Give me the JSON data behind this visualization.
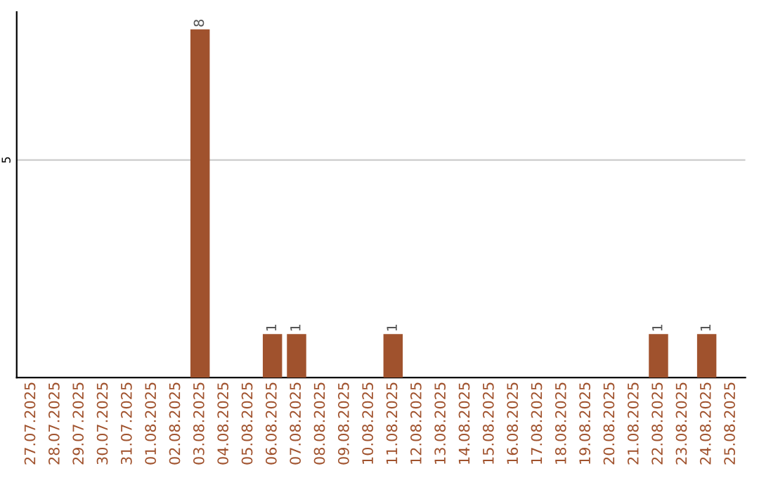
{
  "chart_data": {
    "type": "bar",
    "categories": [
      "27.07.2025",
      "28.07.2025",
      "29.07.2025",
      "30.07.2025",
      "31.07.2025",
      "01.08.2025",
      "02.08.2025",
      "03.08.2025",
      "04.08.2025",
      "05.08.2025",
      "06.08.2025",
      "07.08.2025",
      "08.08.2025",
      "09.08.2025",
      "10.08.2025",
      "11.08.2025",
      "12.08.2025",
      "13.08.2025",
      "14.08.2025",
      "15.08.2025",
      "16.08.2025",
      "17.08.2025",
      "18.08.2025",
      "19.08.2025",
      "20.08.2025",
      "21.08.2025",
      "22.08.2025",
      "23.08.2025",
      "24.08.2025",
      "25.08.2025"
    ],
    "values": [
      0,
      0,
      0,
      0,
      0,
      0,
      0,
      8,
      0,
      0,
      1,
      1,
      0,
      0,
      0,
      1,
      0,
      0,
      0,
      0,
      0,
      0,
      0,
      0,
      0,
      0,
      1,
      0,
      1,
      0
    ],
    "value_labels": [
      null,
      null,
      null,
      null,
      null,
      null,
      null,
      "8",
      null,
      null,
      "1",
      "1",
      null,
      null,
      null,
      "1",
      null,
      null,
      null,
      null,
      null,
      null,
      null,
      null,
      null,
      null,
      "1",
      null,
      "1",
      null
    ],
    "color": "#a0522d",
    "ylim": [
      0,
      8.4
    ],
    "yticks": [
      5
    ],
    "grid": "y"
  }
}
